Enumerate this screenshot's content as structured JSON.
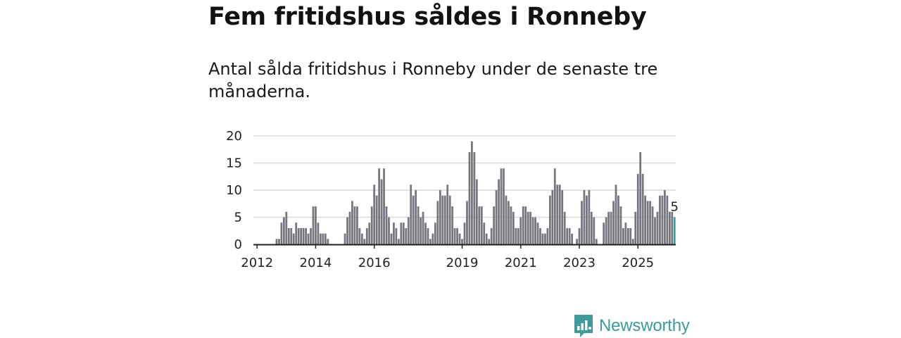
{
  "header": {
    "title": "Fem fritidshus såldes i Ronneby",
    "subtitle": "Antal sålda fritidshus i Ronneby under de senaste tre månaderna."
  },
  "brand": {
    "name": "Newsworthy",
    "icon": "newsworthy-logo-icon",
    "color": "#3f9a9c"
  },
  "colors": {
    "bar": "#77767e",
    "highlight": "#2ca6a4",
    "grid": "#d9d9d9",
    "axis": "#222222"
  },
  "chart_data": {
    "type": "bar",
    "title": "",
    "xlabel": "",
    "ylabel": "",
    "ylim": [
      0,
      20
    ],
    "y_ticks": [
      0,
      5,
      10,
      15,
      20
    ],
    "x_ticks": [
      "2012",
      "2014",
      "2016",
      "2019",
      "2021",
      "2023",
      "2025"
    ],
    "grid": true,
    "legend": "none",
    "first_month": "2011-12",
    "last_month_label": "5",
    "values": [
      0,
      0,
      0,
      0,
      0,
      0,
      0,
      0,
      0,
      1,
      1,
      4,
      5,
      6,
      3,
      3,
      2,
      4,
      3,
      3,
      3,
      3,
      2,
      3,
      7,
      7,
      4,
      2,
      2,
      2,
      1,
      0,
      0,
      0,
      0,
      0,
      0,
      2,
      5,
      6,
      8,
      7,
      7,
      3,
      2,
      1,
      3,
      4,
      7,
      11,
      9,
      14,
      12,
      14,
      7,
      5,
      2,
      4,
      3,
      1,
      4,
      4,
      3,
      5,
      11,
      9,
      10,
      7,
      5,
      6,
      4,
      3,
      1,
      2,
      4,
      8,
      10,
      9,
      9,
      11,
      9,
      7,
      3,
      3,
      2,
      1,
      4,
      8,
      17,
      19,
      17,
      12,
      7,
      7,
      4,
      2,
      1,
      3,
      7,
      10,
      12,
      14,
      14,
      9,
      8,
      7,
      6,
      3,
      3,
      5,
      7,
      7,
      6,
      6,
      5,
      5,
      4,
      3,
      2,
      2,
      3,
      9,
      10,
      14,
      11,
      11,
      10,
      6,
      3,
      3,
      2,
      0,
      1,
      3,
      8,
      10,
      9,
      10,
      6,
      5,
      1,
      0,
      0,
      4,
      5,
      6,
      6,
      8,
      11,
      9,
      7,
      3,
      4,
      3,
      3,
      1,
      6,
      13,
      17,
      13,
      9,
      8,
      8,
      7,
      5,
      6,
      9,
      9,
      10,
      9,
      6,
      6,
      5
    ]
  }
}
